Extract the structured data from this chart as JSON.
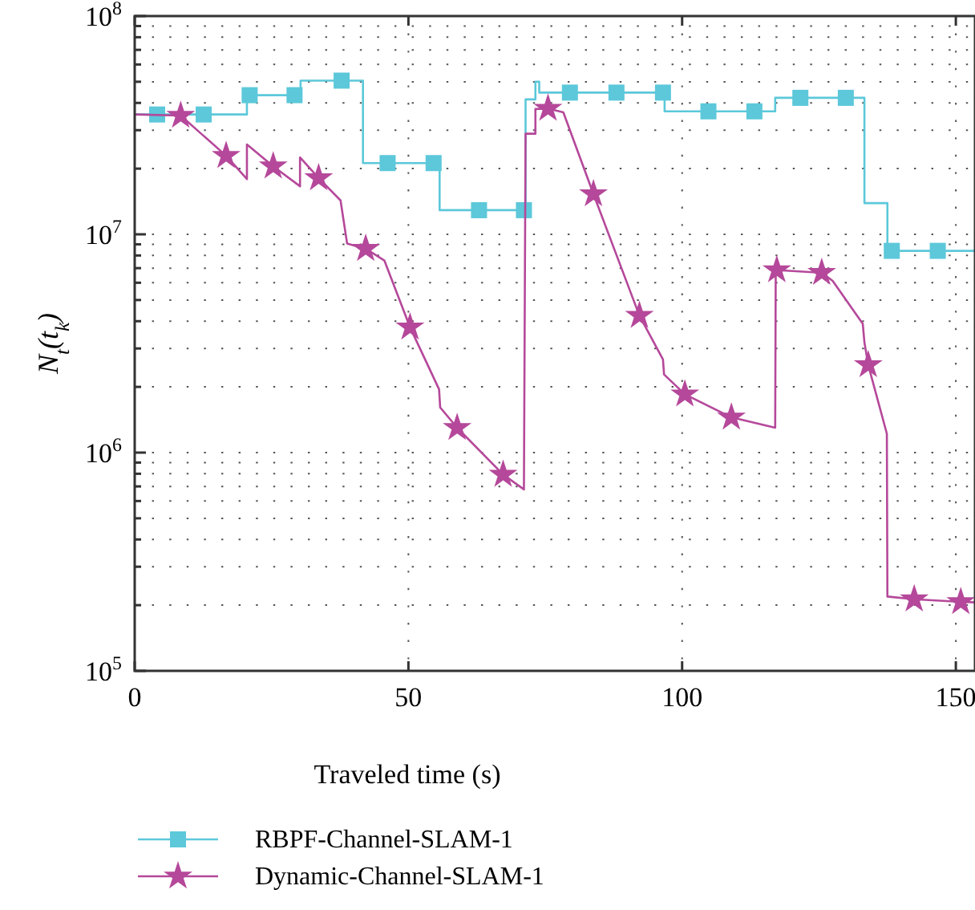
{
  "chart_data": {
    "type": "line",
    "xlabel": "Traveled time (s)",
    "ylabel": "N$_{t}$(t$_{k}$)",
    "xlim": [
      0,
      153.5
    ],
    "ylim": [
      100000,
      100000000
    ],
    "log": true,
    "grid": true,
    "legend": "bottom",
    "line_style": "solid",
    "xticks": [
      0,
      50,
      100,
      150
    ],
    "yticks": [
      {
        "value": 100000,
        "label": "10$^{5}$"
      },
      {
        "value": 200000,
        "label": null
      },
      {
        "value": 300000,
        "label": null
      },
      {
        "value": 400000,
        "label": null
      },
      {
        "value": 500000,
        "label": null
      },
      {
        "value": 600000,
        "label": null
      },
      {
        "value": 700000,
        "label": null
      },
      {
        "value": 800000,
        "label": null
      },
      {
        "value": 900000,
        "label": null
      },
      {
        "value": 1000000,
        "label": "10$^{6}$"
      },
      {
        "value": 2000000,
        "label": null
      },
      {
        "value": 3000000,
        "label": null
      },
      {
        "value": 4000000,
        "label": null
      },
      {
        "value": 5000000,
        "label": null
      },
      {
        "value": 6000000,
        "label": null
      },
      {
        "value": 7000000,
        "label": null
      },
      {
        "value": 8000000,
        "label": null
      },
      {
        "value": 9000000,
        "label": null
      },
      {
        "value": 10000000,
        "label": "10$^{7}$"
      },
      {
        "value": 20000000,
        "label": null
      },
      {
        "value": 30000000,
        "label": null
      },
      {
        "value": 40000000,
        "label": null
      },
      {
        "value": 50000000,
        "label": null
      },
      {
        "value": 60000000,
        "label": null
      },
      {
        "value": 70000000,
        "label": null
      },
      {
        "value": 80000000,
        "label": null
      },
      {
        "value": 90000000,
        "label": null
      },
      {
        "value": 100000000,
        "label": "10$^{8}$"
      }
    ],
    "series": [
      {
        "name": "RBPF-Channel-SLAM-1",
        "type": "step",
        "color": "#5cc8da",
        "x": [
          0,
          20.5,
          30.3,
          41.7,
          55.7,
          71.4,
          73.2,
          73.9,
          96.8,
          117,
          133.3,
          137.5,
          153.5
        ],
        "values": [
          35400000,
          43400000,
          50600000,
          21200000,
          12900000,
          41500000,
          50000000,
          44600000,
          36600000,
          42200000,
          13900000,
          8400000,
          8400000
        ]
      },
      {
        "type": "scatter",
        "color": "#5cc8da",
        "marker": "square",
        "x": [
          4.1,
          12.6,
          21,
          29.2,
          37.8,
          46.2,
          54.6,
          62.9,
          71.1,
          79.5,
          88,
          96.5,
          104.8,
          113.2,
          121.6,
          129.9,
          138.3,
          146.7
        ],
        "values": [
          35400000,
          35400000,
          43400000,
          43400000,
          50600000,
          21200000,
          21200000,
          12900000,
          12900000,
          44600000,
          44600000,
          44600000,
          36600000,
          36600000,
          42200000,
          42200000,
          8400000,
          8400000
        ]
      },
      {
        "name": "Dynamic-Channel-SLAM-1",
        "color": "#b5489a",
        "x": [
          0,
          8.4,
          16.7,
          20.5,
          20.5,
          25.3,
          30.2,
          30.2,
          33.6,
          37.6,
          38.8,
          42.2,
          45.6,
          50.3,
          55.6,
          55.8,
          58.9,
          67.3,
          71.1,
          71.4,
          73.2,
          73.2,
          75.5,
          78.3,
          83.8,
          92.2,
          96.5,
          96.7,
          100.5,
          109,
          117,
          117.1,
          125.5,
          127.5,
          133,
          133.3,
          134,
          137.4,
          137.5,
          142.4,
          150.9,
          153.5
        ],
        "values": [
          35400000,
          35000000,
          22900000,
          17900000,
          25800000,
          20500000,
          16600000,
          22500000,
          18100000,
          14300000,
          9080000,
          8590000,
          7590000,
          3750000,
          1950000,
          1610000,
          1300000,
          793000,
          678000,
          28900000,
          28900000,
          37500000,
          37700000,
          36200000,
          15300000,
          4240000,
          2670000,
          2280000,
          1850000,
          1450000,
          1300000,
          6860000,
          6670000,
          6120000,
          3890000,
          3200000,
          2520000,
          1220000,
          219000,
          213000,
          207000,
          206000
        ]
      },
      {
        "type": "scatter",
        "color": "#b5489a",
        "marker": "star",
        "x": [
          8.4,
          16.7,
          25.3,
          33.6,
          42.2,
          50.3,
          58.9,
          67.3,
          75.5,
          83.8,
          92.2,
          100.5,
          109,
          117.3,
          125.5,
          134,
          142.4,
          150.9
        ],
        "values": [
          35000000,
          22900000,
          20500000,
          18100000,
          8590000,
          3750000,
          1300000,
          793000,
          37700000,
          15300000,
          4240000,
          1850000,
          1450000,
          6860000,
          6670000,
          2520000,
          213000,
          207000
        ]
      }
    ]
  }
}
